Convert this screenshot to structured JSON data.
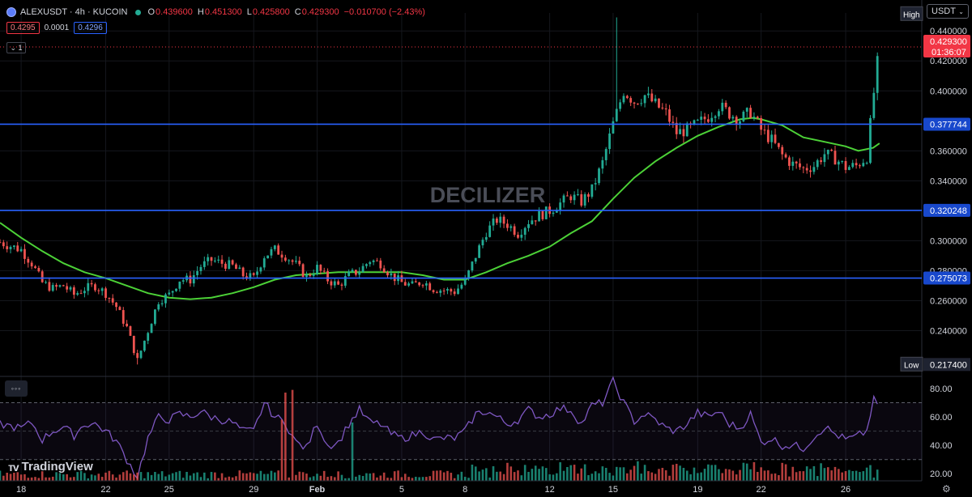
{
  "header": {
    "symbol_line": "ALEXUSDT · 4h · KUCOIN",
    "o_key": "O",
    "o_val": "0.439600",
    "h_key": "H",
    "h_val": "0.451300",
    "l_key": "L",
    "l_val": "0.425800",
    "c_key": "C",
    "c_val": "0.429300",
    "change": "−0.010700 (−2.43%)"
  },
  "quote": {
    "bid": "0.4295",
    "spread": "0.0001",
    "ask": "0.4296"
  },
  "collapse_label": "1",
  "currency": "USDT",
  "pane_menu_label": "◦◦◦",
  "watermark": "DECILIZER",
  "brand": "TradingView",
  "colors": {
    "up": "#22ab94",
    "down": "#ef5350",
    "ma": "#4cd137",
    "rsi": "#7e57c2",
    "hline": "#2962ff",
    "price_line": "#f23645",
    "label_bg": "#1848cc"
  },
  "chart_data": [
    {
      "type": "candlestick",
      "title": "ALEXUSDT · 4h · KUCOIN",
      "ylim": [
        0.21,
        0.452
      ],
      "y_ticks": [
        "0.440000",
        "0.420000",
        "0.400000",
        "0.360000",
        "0.340000",
        "0.300000",
        "0.280000",
        "0.260000",
        "0.240000"
      ],
      "y_tick_values": [
        0.44,
        0.42,
        0.4,
        0.36,
        0.34,
        0.3,
        0.28,
        0.26,
        0.24
      ],
      "x_ticks": [
        "18",
        "22",
        "25",
        "29",
        "Feb",
        "5",
        "8",
        "12",
        "15",
        "19",
        "22",
        "26"
      ],
      "x_tick_positions": [
        0.0,
        4.0,
        7.0,
        11.0,
        14.0,
        18.0,
        21.0,
        25.0,
        28.0,
        32.0,
        35.0,
        39.0
      ],
      "x_range_days": [
        -1.0,
        42.6
      ],
      "h_levels": [
        {
          "label": "0.377744",
          "value": 0.377744
        },
        {
          "label": "0.320248",
          "value": 0.320248
        },
        {
          "label": "0.275073",
          "value": 0.275073
        }
      ],
      "current_price": {
        "value": 0.4293,
        "countdown": "01:36:07"
      },
      "high_marker": {
        "label": "High",
        "value": 0.4513
      },
      "low_marker": {
        "label": "Low",
        "value": 0.2174,
        "value_label": "0.217400"
      },
      "ma_path": [
        [
          -1.0,
          0.312
        ],
        [
          0.0,
          0.302
        ],
        [
          1.0,
          0.293
        ],
        [
          2.0,
          0.285
        ],
        [
          3.0,
          0.279
        ],
        [
          4.0,
          0.275
        ],
        [
          5.0,
          0.27
        ],
        [
          6.0,
          0.265
        ],
        [
          7.0,
          0.262
        ],
        [
          8.0,
          0.261
        ],
        [
          9.0,
          0.262
        ],
        [
          10.0,
          0.265
        ],
        [
          11.0,
          0.269
        ],
        [
          12.0,
          0.274
        ],
        [
          13.0,
          0.277
        ],
        [
          14.0,
          0.278
        ],
        [
          15.0,
          0.279
        ],
        [
          16.0,
          0.279
        ],
        [
          17.0,
          0.279
        ],
        [
          18.0,
          0.279
        ],
        [
          19.0,
          0.277
        ],
        [
          20.0,
          0.274
        ],
        [
          21.0,
          0.274
        ],
        [
          22.0,
          0.279
        ],
        [
          23.0,
          0.285
        ],
        [
          24.0,
          0.29
        ],
        [
          25.0,
          0.296
        ],
        [
          26.0,
          0.305
        ],
        [
          27.0,
          0.313
        ],
        [
          28.0,
          0.328
        ],
        [
          29.0,
          0.342
        ],
        [
          30.0,
          0.353
        ],
        [
          31.0,
          0.362
        ],
        [
          32.0,
          0.37
        ],
        [
          33.0,
          0.376
        ],
        [
          34.0,
          0.381
        ],
        [
          34.6,
          0.382
        ],
        [
          35.0,
          0.381
        ],
        [
          36.0,
          0.377
        ],
        [
          37.0,
          0.369
        ],
        [
          38.0,
          0.366
        ],
        [
          39.0,
          0.363
        ],
        [
          39.6,
          0.36
        ],
        [
          40.3,
          0.362
        ],
        [
          40.6,
          0.365
        ]
      ],
      "close_path": [
        [
          -1.0,
          0.299
        ],
        [
          0.0,
          0.294
        ],
        [
          0.5,
          0.285
        ],
        [
          1.0,
          0.272
        ],
        [
          1.5,
          0.268
        ],
        [
          2.0,
          0.27
        ],
        [
          2.5,
          0.264
        ],
        [
          3.0,
          0.268
        ],
        [
          3.5,
          0.27
        ],
        [
          4.0,
          0.265
        ],
        [
          4.5,
          0.256
        ],
        [
          5.0,
          0.242
        ],
        [
          5.5,
          0.22
        ],
        [
          6.0,
          0.24
        ],
        [
          6.5,
          0.26
        ],
        [
          7.0,
          0.264
        ],
        [
          7.5,
          0.274
        ],
        [
          8.0,
          0.274
        ],
        [
          8.5,
          0.283
        ],
        [
          9.0,
          0.287
        ],
        [
          9.5,
          0.285
        ],
        [
          10.0,
          0.283
        ],
        [
          10.5,
          0.277
        ],
        [
          11.0,
          0.275
        ],
        [
          11.5,
          0.29
        ],
        [
          12.0,
          0.294
        ],
        [
          12.5,
          0.29
        ],
        [
          13.0,
          0.284
        ],
        [
          13.5,
          0.276
        ],
        [
          14.0,
          0.282
        ],
        [
          14.5,
          0.274
        ],
        [
          15.0,
          0.27
        ],
        [
          15.5,
          0.277
        ],
        [
          16.0,
          0.28
        ],
        [
          16.5,
          0.287
        ],
        [
          17.0,
          0.285
        ],
        [
          17.5,
          0.277
        ],
        [
          18.0,
          0.272
        ],
        [
          18.5,
          0.27
        ],
        [
          19.0,
          0.273
        ],
        [
          19.5,
          0.268
        ],
        [
          20.0,
          0.267
        ],
        [
          20.5,
          0.266
        ],
        [
          21.0,
          0.273
        ],
        [
          21.5,
          0.29
        ],
        [
          22.0,
          0.306
        ],
        [
          22.5,
          0.314
        ],
        [
          23.0,
          0.311
        ],
        [
          23.5,
          0.305
        ],
        [
          24.0,
          0.313
        ],
        [
          24.5,
          0.317
        ],
        [
          25.0,
          0.32
        ],
        [
          25.5,
          0.325
        ],
        [
          26.0,
          0.33
        ],
        [
          26.5,
          0.326
        ],
        [
          27.0,
          0.334
        ],
        [
          27.5,
          0.352
        ],
        [
          28.0,
          0.378
        ],
        [
          28.5,
          0.4
        ],
        [
          29.0,
          0.393
        ],
        [
          29.5,
          0.397
        ],
        [
          30.0,
          0.391
        ],
        [
          30.5,
          0.385
        ],
        [
          31.0,
          0.372
        ],
        [
          31.5,
          0.374
        ],
        [
          32.0,
          0.378
        ],
        [
          32.5,
          0.383
        ],
        [
          33.0,
          0.39
        ],
        [
          33.5,
          0.385
        ],
        [
          34.0,
          0.381
        ],
        [
          34.5,
          0.386
        ],
        [
          35.0,
          0.374
        ],
        [
          35.5,
          0.367
        ],
        [
          36.0,
          0.357
        ],
        [
          36.5,
          0.351
        ],
        [
          37.0,
          0.348
        ],
        [
          37.5,
          0.35
        ],
        [
          38.0,
          0.358
        ],
        [
          38.5,
          0.355
        ],
        [
          39.0,
          0.349
        ],
        [
          39.5,
          0.35
        ],
        [
          40.0,
          0.356
        ],
        [
          40.3,
          0.395
        ],
        [
          40.6,
          0.43
        ]
      ],
      "rsi": {
        "ylim": [
          15,
          88
        ],
        "y_ticks": [
          "80.00",
          "60.00",
          "40.00",
          "20.00"
        ],
        "y_tick_values": [
          80,
          60,
          40,
          20
        ],
        "band": [
          30,
          70
        ],
        "path": [
          [
            -1.0,
            55
          ],
          [
            0.0,
            52
          ],
          [
            0.5,
            56
          ],
          [
            1.0,
            44
          ],
          [
            1.5,
            50
          ],
          [
            2.0,
            53
          ],
          [
            2.5,
            47
          ],
          [
            3.0,
            55
          ],
          [
            3.5,
            55
          ],
          [
            4.0,
            50
          ],
          [
            4.5,
            43
          ],
          [
            5.0,
            30
          ],
          [
            5.5,
            18
          ],
          [
            6.0,
            45
          ],
          [
            6.5,
            60
          ],
          [
            7.0,
            58
          ],
          [
            7.5,
            62
          ],
          [
            8.0,
            60
          ],
          [
            8.5,
            64
          ],
          [
            9.0,
            60
          ],
          [
            9.5,
            58
          ],
          [
            10.0,
            56
          ],
          [
            10.5,
            50
          ],
          [
            11.0,
            50
          ],
          [
            11.5,
            70
          ],
          [
            12.0,
            60
          ],
          [
            12.5,
            56
          ],
          [
            13.0,
            42
          ],
          [
            13.5,
            38
          ],
          [
            14.0,
            56
          ],
          [
            14.5,
            40
          ],
          [
            15.0,
            42
          ],
          [
            15.5,
            55
          ],
          [
            16.0,
            65
          ],
          [
            16.5,
            56
          ],
          [
            17.0,
            55
          ],
          [
            17.5,
            48
          ],
          [
            18.0,
            45
          ],
          [
            18.5,
            47
          ],
          [
            19.0,
            50
          ],
          [
            19.5,
            44
          ],
          [
            20.0,
            45
          ],
          [
            20.5,
            45
          ],
          [
            21.0,
            50
          ],
          [
            21.5,
            62
          ],
          [
            22.0,
            64
          ],
          [
            22.5,
            60
          ],
          [
            23.0,
            55
          ],
          [
            23.5,
            58
          ],
          [
            24.0,
            65
          ],
          [
            24.5,
            60
          ],
          [
            25.0,
            62
          ],
          [
            25.5,
            66
          ],
          [
            26.0,
            65
          ],
          [
            26.5,
            55
          ],
          [
            27.0,
            68
          ],
          [
            27.5,
            70
          ],
          [
            28.0,
            85
          ],
          [
            28.5,
            70
          ],
          [
            29.0,
            57
          ],
          [
            29.5,
            62
          ],
          [
            30.0,
            58
          ],
          [
            30.5,
            52
          ],
          [
            31.0,
            50
          ],
          [
            31.5,
            55
          ],
          [
            32.0,
            63
          ],
          [
            32.5,
            60
          ],
          [
            33.0,
            64
          ],
          [
            33.5,
            55
          ],
          [
            34.0,
            52
          ],
          [
            34.5,
            62
          ],
          [
            35.0,
            42
          ],
          [
            35.5,
            45
          ],
          [
            36.0,
            40
          ],
          [
            36.5,
            40
          ],
          [
            37.0,
            38
          ],
          [
            37.5,
            46
          ],
          [
            38.0,
            53
          ],
          [
            38.5,
            48
          ],
          [
            39.0,
            44
          ],
          [
            39.5,
            46
          ],
          [
            40.0,
            50
          ],
          [
            40.3,
            72
          ],
          [
            40.6,
            68
          ]
        ]
      }
    }
  ]
}
